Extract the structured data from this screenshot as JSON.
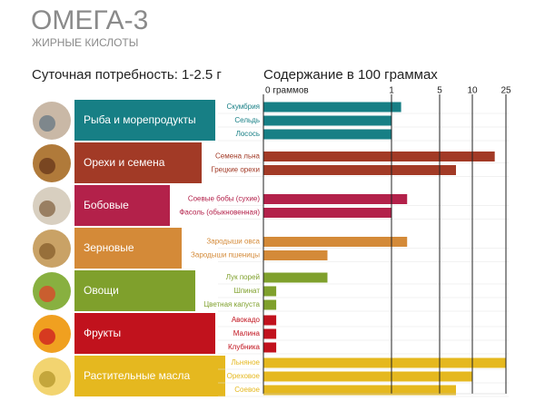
{
  "chart_data": {
    "type": "bar",
    "title": "ОМЕГА-3",
    "subtitle": "ЖИРНЫЕ КИСЛОТЫ",
    "daily_need": "Суточная потребность: 1-2.5 г",
    "axis_title": "Содержание в 100 граммах",
    "xlim": [
      0,
      25
    ],
    "xticks": [
      {
        "value": 0,
        "label": "0 граммов"
      },
      1,
      5,
      10,
      25
    ],
    "groups": [
      {
        "name": "Рыба и морепродукты",
        "color": "#177f85",
        "categories": [
          "Скумбрия",
          "Сельдь",
          "Лосось"
        ],
        "values": [
          1.8,
          1,
          1
        ]
      },
      {
        "name": "Орехи и семена",
        "color": "#a23a26",
        "categories": [
          "Семена льна",
          "Грецкие орехи"
        ],
        "values": [
          20,
          7.5
        ]
      },
      {
        "name": "Бобовые",
        "color": "#b3214a",
        "categories": [
          "Соевые бобы (сухие)",
          "Фасоль (обыкновенная)"
        ],
        "values": [
          2.3,
          1
        ]
      },
      {
        "name": "Зерновые",
        "color": "#d48a38",
        "categories": [
          "Зародыши овса",
          "Зародыши пшеницы"
        ],
        "values": [
          2.3,
          0.5
        ]
      },
      {
        "name": "Овощи",
        "color": "#7fa02c",
        "categories": [
          "Лук порей",
          "Шпинат",
          "Цветная капуста"
        ],
        "values": [
          0.5,
          0.1,
          0.1
        ]
      },
      {
        "name": "Фрукты",
        "color": "#c1121d",
        "categories": [
          "Авокадо",
          "Малина",
          "Клубника"
        ],
        "values": [
          0.1,
          0.1,
          0.1
        ]
      },
      {
        "name": "Растительные масла",
        "color": "#e5b81f",
        "categories": [
          "Льняное",
          "Ореховое",
          "Соевое"
        ],
        "values": [
          25,
          10,
          7.5
        ]
      }
    ]
  }
}
